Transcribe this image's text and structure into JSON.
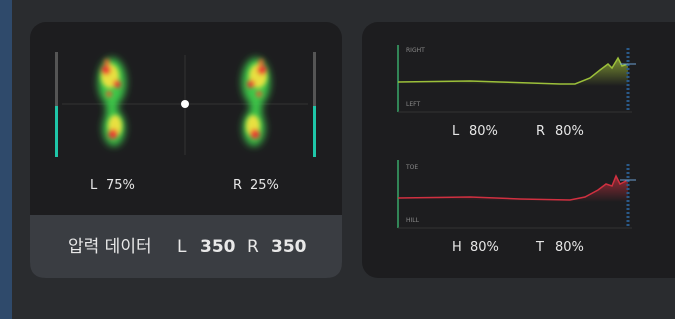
{
  "pressure_panel": {
    "left_foot": {
      "side": "L",
      "value": "75%"
    },
    "right_foot": {
      "side": "R",
      "value": "25%"
    },
    "summary": {
      "label": "압력 데이터",
      "left_side": "L",
      "left_value": "350",
      "right_side": "R",
      "right_value": "350"
    }
  },
  "balance_panel": {
    "lateral": {
      "top_label": "RIGHT",
      "bottom_label": "LEFT",
      "left_side": "L",
      "left_value": "80%",
      "right_side": "R",
      "right_value": "80%"
    },
    "longitudinal": {
      "top_label": "TOE",
      "bottom_label": "HILL",
      "left_side": "H",
      "left_value": "80%",
      "right_side": "T",
      "right_value": "80%"
    }
  }
}
